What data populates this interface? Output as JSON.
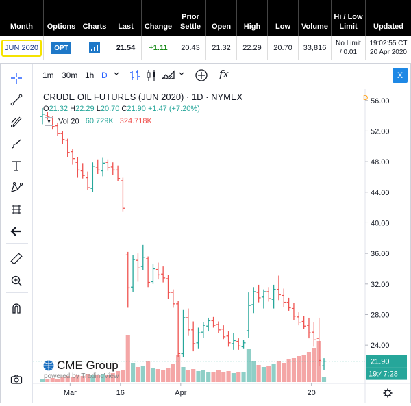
{
  "table": {
    "headers": [
      "Month",
      "Options",
      "Charts",
      "Last",
      "Change",
      "Prior Settle",
      "Open",
      "High",
      "Low",
      "Volume",
      "Hi / Low Limit",
      "Updated"
    ],
    "row": {
      "month": "JUN 2020",
      "options": "OPT",
      "last": "21.54",
      "change": "+1.11",
      "prior_settle": "20.43",
      "open": "21.32",
      "high": "22.29",
      "low": "20.70",
      "volume": "33,816",
      "limit_line1": "No Limit",
      "limit_line2": "/ 0.01",
      "updated_line1": "19:02:55 CT",
      "updated_line2": "20 Apr 2020"
    }
  },
  "toolbar": {
    "intervals": [
      "1m",
      "30m",
      "1h",
      "D"
    ],
    "active_interval": "D",
    "close_label": "X",
    "fx_label": "fx"
  },
  "legend": {
    "title": "CRUDE OIL FUTURES (JUN 2020) · 1D · NYMEX",
    "o_key": "O",
    "o_val": "21.32",
    "h_key": "H",
    "h_val": "22.29",
    "l_key": "L",
    "l_val": "20.70",
    "c_key": "C",
    "c_val": "21.90",
    "chg": "+1.47 (+7.20%)",
    "vol_label": "Vol 20",
    "vol_val1": "60.729K",
    "vol_val2": "324.718K",
    "d_flag": "D"
  },
  "watermark": {
    "brand": "CME Group",
    "powered": "powered by TradingView"
  },
  "price_label": "21.90",
  "time_label": "19:47:28",
  "colors": {
    "up": "#26a69a",
    "down": "#ef5350",
    "up_vol": "#8fcfc7",
    "down_vol": "#f4a6a6",
    "accent": "#1e88e5",
    "label_bg": "#26a69a"
  },
  "chart_data": {
    "type": "candlestick",
    "y_axis_ticks": [
      56.0,
      52.0,
      48.0,
      44.0,
      40.0,
      36.0,
      32.0,
      28.0,
      24.0
    ],
    "x_axis_ticks": [
      "Mar",
      "16",
      "Apr",
      "20"
    ],
    "ylim": [
      19.0,
      57.5
    ],
    "bars": [
      {
        "d": "2020-02-20",
        "o": 53.9,
        "h": 55.0,
        "l": 52.9,
        "c": 54.2
      },
      {
        "d": "2020-02-21",
        "o": 54.0,
        "h": 54.5,
        "l": 53.5,
        "c": 53.9
      },
      {
        "d": "2020-02-24",
        "o": 53.7,
        "h": 53.9,
        "l": 52.2,
        "c": 52.6
      },
      {
        "d": "2020-02-25",
        "o": 52.7,
        "h": 53.1,
        "l": 51.4,
        "c": 51.7
      },
      {
        "d": "2020-02-26",
        "o": 51.7,
        "h": 52.0,
        "l": 50.3,
        "c": 50.9
      },
      {
        "d": "2020-02-27",
        "o": 50.8,
        "h": 51.0,
        "l": 48.6,
        "c": 49.2
      },
      {
        "d": "2020-02-28",
        "o": 49.3,
        "h": 49.7,
        "l": 47.6,
        "c": 48.4
      },
      {
        "d": "2020-03-02",
        "o": 47.9,
        "h": 48.6,
        "l": 45.9,
        "c": 46.9
      },
      {
        "d": "2020-03-03",
        "o": 46.8,
        "h": 47.8,
        "l": 45.8,
        "c": 46.2
      },
      {
        "d": "2020-03-04",
        "o": 45.9,
        "h": 46.7,
        "l": 44.3,
        "c": 44.6
      },
      {
        "d": "2020-03-05",
        "o": 44.5,
        "h": 47.9,
        "l": 44.0,
        "c": 47.4
      },
      {
        "d": "2020-03-06",
        "o": 47.2,
        "h": 48.3,
        "l": 46.4,
        "c": 46.9
      },
      {
        "d": "2020-03-09",
        "o": 46.8,
        "h": 48.5,
        "l": 46.1,
        "c": 47.8
      },
      {
        "d": "2020-03-10",
        "o": 47.9,
        "h": 48.3,
        "l": 46.8,
        "c": 47.2
      },
      {
        "d": "2020-03-11",
        "o": 47.3,
        "h": 47.9,
        "l": 46.3,
        "c": 46.9
      },
      {
        "d": "2020-03-12",
        "o": 46.9,
        "h": 47.5,
        "l": 45.5,
        "c": 45.8
      },
      {
        "d": "2020-03-13",
        "o": 45.5,
        "h": 45.9,
        "l": 41.5,
        "c": 41.9
      },
      {
        "d": "2020-03-16",
        "o": 35.8,
        "h": 36.2,
        "l": 28.9,
        "c": 31.5
      },
      {
        "d": "2020-03-17",
        "o": 31.6,
        "h": 35.8,
        "l": 31.0,
        "c": 35.2
      },
      {
        "d": "2020-03-18",
        "o": 35.1,
        "h": 36.0,
        "l": 32.3,
        "c": 34.1
      },
      {
        "d": "2020-03-19",
        "o": 34.3,
        "h": 37.1,
        "l": 33.8,
        "c": 35.5
      },
      {
        "d": "2020-03-20",
        "o": 35.3,
        "h": 35.6,
        "l": 31.6,
        "c": 32.2
      },
      {
        "d": "2020-03-23",
        "o": 32.3,
        "h": 34.6,
        "l": 32.0,
        "c": 34.0
      },
      {
        "d": "2020-03-24",
        "o": 33.9,
        "h": 34.8,
        "l": 32.6,
        "c": 33.2
      },
      {
        "d": "2020-03-25",
        "o": 33.3,
        "h": 34.3,
        "l": 32.2,
        "c": 32.8
      },
      {
        "d": "2020-03-26",
        "o": 32.7,
        "h": 33.2,
        "l": 30.1,
        "c": 30.9
      },
      {
        "d": "2020-03-27",
        "o": 30.9,
        "h": 31.3,
        "l": 28.9,
        "c": 29.4
      },
      {
        "d": "2020-03-30",
        "o": 29.4,
        "h": 29.8,
        "l": 22.5,
        "c": 22.9
      },
      {
        "d": "2020-03-31",
        "o": 22.9,
        "h": 28.6,
        "l": 22.4,
        "c": 27.6
      },
      {
        "d": "2020-04-01",
        "o": 27.6,
        "h": 28.8,
        "l": 25.2,
        "c": 26.0
      },
      {
        "d": "2020-04-02",
        "o": 26.0,
        "h": 27.1,
        "l": 23.2,
        "c": 24.2
      },
      {
        "d": "2020-04-03",
        "o": 24.3,
        "h": 26.3,
        "l": 23.5,
        "c": 25.6
      },
      {
        "d": "2020-04-06",
        "o": 25.7,
        "h": 27.0,
        "l": 25.0,
        "c": 26.6
      },
      {
        "d": "2020-04-07",
        "o": 26.5,
        "h": 27.6,
        "l": 25.8,
        "c": 27.2
      },
      {
        "d": "2020-04-08",
        "o": 27.2,
        "h": 27.7,
        "l": 26.3,
        "c": 26.6
      },
      {
        "d": "2020-04-09",
        "o": 26.7,
        "h": 27.1,
        "l": 25.6,
        "c": 26.0
      },
      {
        "d": "2020-04-13",
        "o": 26.1,
        "h": 26.6,
        "l": 24.8,
        "c": 25.1
      },
      {
        "d": "2020-04-14",
        "o": 25.2,
        "h": 25.8,
        "l": 23.8,
        "c": 24.3
      },
      {
        "d": "2020-04-15",
        "o": 24.2,
        "h": 25.6,
        "l": 23.4,
        "c": 24.6
      },
      {
        "d": "2020-04-16",
        "o": 24.5,
        "h": 24.9,
        "l": 23.4,
        "c": 23.9
      },
      {
        "d": "2020-04-17",
        "o": 23.8,
        "h": 24.7,
        "l": 23.5,
        "c": 24.3
      },
      {
        "d": "2020-04-20",
        "o": 25.9,
        "h": 30.9,
        "l": 25.0,
        "c": 29.2
      },
      {
        "d": "2020-04-21",
        "o": 29.3,
        "h": 31.6,
        "l": 28.2,
        "c": 31.0
      },
      {
        "d": "2020-04-22",
        "o": 30.9,
        "h": 31.9,
        "l": 29.6,
        "c": 30.2
      },
      {
        "d": "2020-04-23",
        "o": 30.3,
        "h": 31.3,
        "l": 28.8,
        "c": 31.0
      },
      {
        "d": "2020-04-24",
        "o": 31.0,
        "h": 31.6,
        "l": 29.7,
        "c": 30.1
      },
      {
        "d": "2020-04-27",
        "o": 30.0,
        "h": 31.9,
        "l": 28.8,
        "c": 31.3
      },
      {
        "d": "2020-04-28",
        "o": 31.3,
        "h": 33.1,
        "l": 29.9,
        "c": 30.6
      },
      {
        "d": "2020-04-29",
        "o": 30.5,
        "h": 31.4,
        "l": 29.0,
        "c": 29.6
      },
      {
        "d": "2020-04-30",
        "o": 29.6,
        "h": 30.2,
        "l": 28.5,
        "c": 28.9
      },
      {
        "d": "2020-05-01",
        "o": 28.8,
        "h": 29.5,
        "l": 27.3,
        "c": 27.8
      },
      {
        "d": "2020-05-04",
        "o": 27.7,
        "h": 28.3,
        "l": 26.6,
        "c": 27.0
      },
      {
        "d": "2020-05-05",
        "o": 27.1,
        "h": 27.8,
        "l": 26.1,
        "c": 26.5
      },
      {
        "d": "2020-05-06",
        "o": 26.6,
        "h": 27.6,
        "l": 24.9,
        "c": 25.6
      },
      {
        "d": "2020-05-07",
        "o": 25.7,
        "h": 27.0,
        "l": 23.8,
        "c": 24.7
      },
      {
        "d": "2020-05-08",
        "o": 24.9,
        "h": 27.6,
        "l": 21.3,
        "c": 22.0
      },
      {
        "d": "2020-05-11",
        "o": 21.3,
        "h": 22.3,
        "l": 20.7,
        "c": 21.9
      }
    ],
    "volume_scale_max": 70,
    "volumes": [
      4,
      5,
      6,
      5,
      7,
      9,
      8,
      10,
      9,
      12,
      11,
      10,
      12,
      11,
      13,
      16,
      18,
      68,
      28,
      22,
      24,
      30,
      20,
      19,
      17,
      21,
      26,
      40,
      22,
      18,
      19,
      16,
      18,
      15,
      14,
      17,
      15,
      16,
      13,
      14,
      15,
      48,
      30,
      25,
      22,
      24,
      27,
      30,
      28,
      33,
      35,
      38,
      40,
      44,
      50,
      60,
      8
    ]
  }
}
